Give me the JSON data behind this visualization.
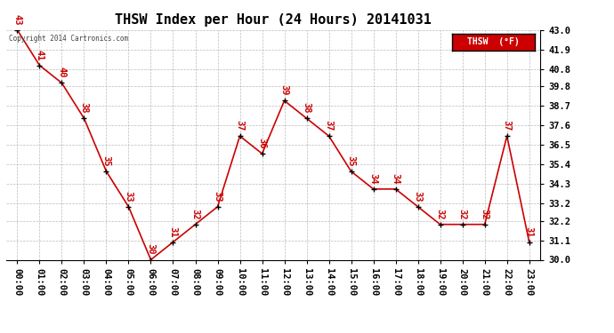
{
  "title": "THSW Index per Hour (24 Hours) 20141031",
  "copyright": "Copyright 2014 Cartronics.com",
  "legend_label": "THSW  (°F)",
  "hours": [
    0,
    1,
    2,
    3,
    4,
    5,
    6,
    7,
    8,
    9,
    10,
    11,
    12,
    13,
    14,
    15,
    16,
    17,
    18,
    19,
    20,
    21,
    22,
    23
  ],
  "hour_labels": [
    "00:00",
    "01:00",
    "02:00",
    "03:00",
    "04:00",
    "05:00",
    "06:00",
    "07:00",
    "08:00",
    "09:00",
    "10:00",
    "11:00",
    "12:00",
    "13:00",
    "14:00",
    "15:00",
    "16:00",
    "17:00",
    "18:00",
    "19:00",
    "20:00",
    "21:00",
    "22:00",
    "23:00"
  ],
  "values": [
    43.0,
    41.0,
    40.0,
    38.0,
    35.0,
    33.0,
    30.0,
    31.0,
    32.0,
    33.0,
    37.0,
    36.0,
    39.0,
    38.0,
    37.0,
    35.0,
    34.0,
    34.0,
    33.0,
    32.0,
    32.0,
    32.0,
    37.0,
    31.0
  ],
  "value_labels": [
    "43",
    "41",
    "40",
    "38",
    "35",
    "33",
    "30",
    "31",
    "32",
    "33",
    "37",
    "36",
    "39",
    "38",
    "37",
    "35",
    "34",
    "34",
    "33",
    "32",
    "32",
    "32",
    "37",
    "31"
  ],
  "line_color": "#cc0000",
  "marker_color": "#000000",
  "ylim_min": 30.0,
  "ylim_max": 43.0,
  "yticks": [
    30.0,
    31.1,
    32.2,
    33.2,
    34.3,
    35.4,
    36.5,
    37.6,
    38.7,
    39.8,
    40.8,
    41.9,
    43.0
  ],
  "bg_color": "#ffffff",
  "grid_color": "#bbbbbb",
  "title_fontsize": 11,
  "label_fontsize": 7.5,
  "tick_fontsize": 7.5,
  "legend_bg": "#cc0000",
  "legend_text_color": "#ffffff"
}
